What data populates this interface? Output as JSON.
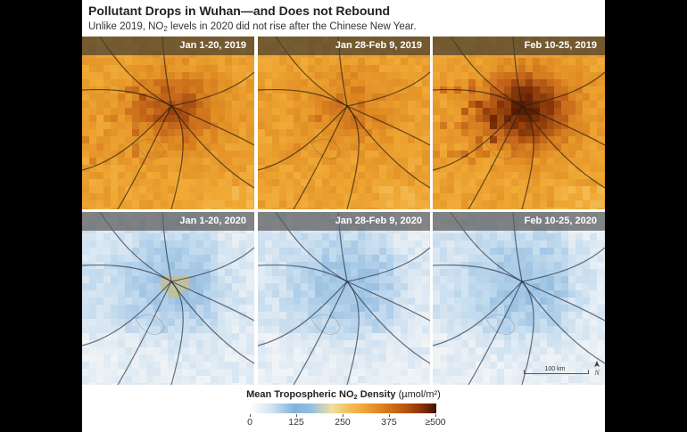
{
  "header": {
    "title": "Pollutant Drops in Wuhan—and Does not Rebound",
    "subtitle_pre": "Unlike 2019, NO",
    "subtitle_sub": "2",
    "subtitle_post": " levels in 2020 did not rise after the Chinese New Year."
  },
  "panels": [
    {
      "label": "Jan 1-20, 2019",
      "palette": "orange",
      "intensity": 0.55
    },
    {
      "label": "Jan 28-Feb 9, 2019",
      "palette": "orange",
      "intensity": 0.3
    },
    {
      "label": "Feb 10-25, 2019",
      "palette": "orange",
      "intensity": 0.9
    },
    {
      "label": "Jan 1-20, 2020",
      "palette": "blue",
      "intensity": 0.55
    },
    {
      "label": "Jan 28-Feb 9, 2020",
      "palette": "blue",
      "intensity": 0.2
    },
    {
      "label": "Feb 10-25, 2020",
      "palette": "blue",
      "intensity": 0.3
    }
  ],
  "map": {
    "scale_label": "100 km",
    "north_label": "N"
  },
  "legend": {
    "title_pre": "Mean Tropospheric NO",
    "title_sub": "2",
    "title_post": " Density",
    "units": "(µmol/m²)",
    "ticks": [
      "0",
      "125",
      "250",
      "375",
      "≥500"
    ]
  },
  "colors": {
    "high_2019": "#7b2b05",
    "mid_2019": "#efa333",
    "low_2020": "#b9d6ec",
    "wuhan_2020": "#f2c766"
  }
}
